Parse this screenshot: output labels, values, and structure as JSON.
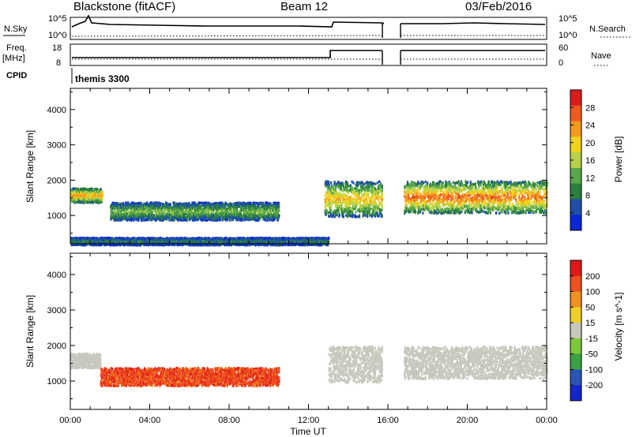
{
  "header": {
    "station": "Blackstone (fitACF)",
    "beam": "Beam 12",
    "date": "03/Feb/2016"
  },
  "top_panels": {
    "nsky_label": "N.Sky",
    "nsearch_label": "N.Search",
    "noise_tick_top": "10^5",
    "noise_tick_bottom": "10^0",
    "freq_label_1": "Freq.",
    "freq_label_2": "[MHz]",
    "freq_ticks": [
      "18",
      "8"
    ],
    "nave_label": "Nave",
    "nave_ticks": [
      "60",
      "0"
    ],
    "cpid_label": "CPID",
    "cpid_value": "themis 3300"
  },
  "chart_data": [
    {
      "type": "heatmap",
      "title": "",
      "ylabel": "Slant Range [km]",
      "xlabel": "",
      "ylim": [
        200,
        4600
      ],
      "yticks": [
        1000,
        2000,
        3000,
        4000
      ],
      "colorbar": {
        "label": "Power [dB]",
        "ticks": [
          "28",
          "24",
          "20",
          "16",
          "12",
          "8",
          "4"
        ],
        "range": [
          0,
          32
        ],
        "colors": [
          "#0a28d8",
          "#1f4fa8",
          "#2a7e3e",
          "#58a84a",
          "#b7d24a",
          "#f2d31c",
          "#f29a1e",
          "#ef5a1e",
          "#dc1c1c"
        ]
      },
      "features": [
        {
          "name": "early echo band",
          "t_start": 0.0,
          "t_end": 1.6,
          "range_km": [
            1400,
            1800
          ],
          "power_db": 20
        },
        {
          "name": "mid-day band",
          "t_start": 2.0,
          "t_end": 10.5,
          "range_km": [
            900,
            1400
          ],
          "power_db": 12
        },
        {
          "name": "afternoon band",
          "t_start": 12.8,
          "t_end": 15.7,
          "range_km": [
            1000,
            2000
          ],
          "power_db": 18
        },
        {
          "name": "evening band",
          "t_start": 16.8,
          "t_end": 24.0,
          "range_km": [
            1100,
            2000
          ],
          "power_db": 22
        },
        {
          "name": "near-range ground scatter",
          "t_start": 0.0,
          "t_end": 13.0,
          "range_km": [
            200,
            400
          ],
          "power_db": 8
        }
      ]
    },
    {
      "type": "heatmap",
      "title": "",
      "ylabel": "Slant Range [km]",
      "xlabel": "Time UT",
      "ylim": [
        200,
        4600
      ],
      "yticks": [
        1000,
        2000,
        3000,
        4000
      ],
      "x_tick_labels": [
        "00:00",
        "04:00",
        "08:00",
        "12:00",
        "16:00",
        "20:00",
        "00:00"
      ],
      "colorbar": {
        "label": "Velocity [m s^-1]",
        "ticks": [
          "200",
          "100",
          "50",
          "15",
          "-15",
          "-50",
          "-100",
          "-200"
        ],
        "colors": [
          "#1428c8",
          "#2a55b8",
          "#3aa040",
          "#7cc83a",
          "#c8c8be",
          "#f0d028",
          "#f09020",
          "#ee5020",
          "#e01818"
        ]
      },
      "features": [
        {
          "name": "near-zero band early",
          "t_start": 0.0,
          "t_end": 1.5,
          "range_km": [
            1400,
            1800
          ],
          "velocity": 0
        },
        {
          "name": "negative velocity band",
          "t_start": 1.5,
          "t_end": 10.5,
          "range_km": [
            900,
            1400
          ],
          "velocity": -120
        },
        {
          "name": "afternoon ground scatter",
          "t_start": 13.0,
          "t_end": 15.7,
          "range_km": [
            1000,
            2000
          ],
          "velocity": 0
        },
        {
          "name": "evening ground scatter",
          "t_start": 16.8,
          "t_end": 24.0,
          "range_km": [
            1100,
            2000
          ],
          "velocity": 0
        }
      ]
    }
  ]
}
